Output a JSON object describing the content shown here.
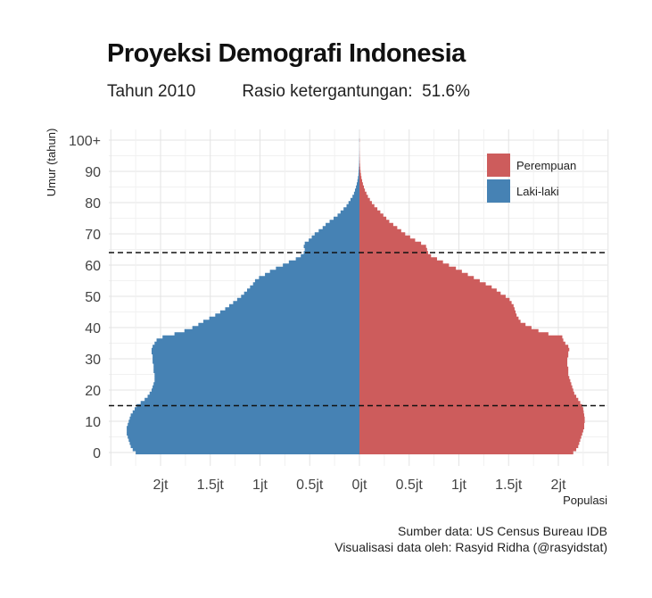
{
  "chart_data": {
    "type": "bar",
    "orientation": "horizontal-pyramid",
    "title": "Proyeksi Demografi Indonesia",
    "subtitle_year": "Tahun 2010",
    "subtitle_ratio_label": "Rasio ketergantungan:",
    "subtitle_ratio_value": "51.6%",
    "ylabel": "Umur (tahun)",
    "xlabel": "Populasi",
    "x_ticks": [
      -2000000,
      -1500000,
      -1000000,
      -500000,
      0,
      500000,
      1000000,
      1500000,
      2000000
    ],
    "x_tick_labels": [
      "2jt",
      "1.5jt",
      "1jt",
      "0.5jt",
      "0jt",
      "0.5jt",
      "1jt",
      "1.5jt",
      "2jt"
    ],
    "xlim": [
      -2500000,
      2500000
    ],
    "y_ticks": [
      0,
      10,
      20,
      30,
      40,
      50,
      60,
      70,
      80,
      90,
      100
    ],
    "y_tick_labels": [
      "0",
      "10",
      "20",
      "30",
      "40",
      "50",
      "60",
      "70",
      "80",
      "90",
      "100+"
    ],
    "ylim": [
      -4,
      106
    ],
    "ages": [
      0,
      1,
      2,
      3,
      4,
      5,
      6,
      7,
      8,
      9,
      10,
      11,
      12,
      13,
      14,
      15,
      16,
      17,
      18,
      19,
      20,
      21,
      22,
      23,
      24,
      25,
      26,
      27,
      28,
      29,
      30,
      31,
      32,
      33,
      34,
      35,
      36,
      37,
      38,
      39,
      40,
      41,
      42,
      43,
      44,
      45,
      46,
      47,
      48,
      49,
      50,
      51,
      52,
      53,
      54,
      55,
      56,
      57,
      58,
      59,
      60,
      61,
      62,
      63,
      64,
      65,
      66,
      67,
      68,
      69,
      70,
      71,
      72,
      73,
      74,
      75,
      76,
      77,
      78,
      79,
      80,
      81,
      82,
      83,
      84,
      85,
      86,
      87,
      88,
      89,
      90,
      91,
      92,
      93,
      94,
      95,
      96,
      97,
      98,
      99,
      100
    ],
    "series": [
      {
        "name": "Perempuan",
        "color": "#cd5c5c",
        "values": [
          2150000,
          2180000,
          2200000,
          2210000,
          2220000,
          2230000,
          2240000,
          2250000,
          2260000,
          2260000,
          2265000,
          2265000,
          2260000,
          2255000,
          2250000,
          2240000,
          2220000,
          2200000,
          2180000,
          2160000,
          2150000,
          2140000,
          2130000,
          2120000,
          2110000,
          2100000,
          2100000,
          2100000,
          2090000,
          2090000,
          2090000,
          2100000,
          2100000,
          2110000,
          2100000,
          2070000,
          2050000,
          2040000,
          1900000,
          1800000,
          1730000,
          1670000,
          1620000,
          1600000,
          1580000,
          1570000,
          1560000,
          1550000,
          1530000,
          1510000,
          1470000,
          1420000,
          1380000,
          1330000,
          1270000,
          1210000,
          1150000,
          1090000,
          1030000,
          970000,
          900000,
          840000,
          780000,
          720000,
          690000,
          680000,
          670000,
          620000,
          560000,
          510000,
          460000,
          420000,
          380000,
          340000,
          300000,
          270000,
          240000,
          210000,
          180000,
          150000,
          125000,
          105000,
          85000,
          70000,
          55000,
          45000,
          35000,
          27000,
          20000,
          15000,
          11000,
          8000,
          6000,
          4000,
          3000,
          2000,
          1500,
          1000,
          700,
          500,
          2000
        ]
      },
      {
        "name": "Laki-laki",
        "color": "#4682b4",
        "values": [
          2250000,
          2280000,
          2300000,
          2310000,
          2320000,
          2330000,
          2340000,
          2340000,
          2340000,
          2330000,
          2320000,
          2310000,
          2300000,
          2280000,
          2260000,
          2240000,
          2200000,
          2160000,
          2130000,
          2110000,
          2090000,
          2080000,
          2070000,
          2060000,
          2060000,
          2060000,
          2070000,
          2070000,
          2070000,
          2080000,
          2080000,
          2080000,
          2090000,
          2090000,
          2080000,
          2060000,
          2040000,
          1980000,
          1860000,
          1760000,
          1680000,
          1620000,
          1570000,
          1510000,
          1450000,
          1400000,
          1350000,
          1310000,
          1270000,
          1230000,
          1190000,
          1160000,
          1130000,
          1100000,
          1070000,
          1050000,
          1010000,
          950000,
          900000,
          840000,
          770000,
          710000,
          640000,
          590000,
          560000,
          550000,
          560000,
          550000,
          510000,
          480000,
          450000,
          410000,
          370000,
          340000,
          300000,
          260000,
          220000,
          190000,
          160000,
          130000,
          110000,
          90000,
          70000,
          55000,
          45000,
          35000,
          27000,
          20000,
          15000,
          10000,
          8000,
          6000,
          4000,
          3000,
          2000,
          1500,
          1000,
          700,
          500,
          400,
          1500
        ]
      }
    ],
    "reference_lines": [
      15,
      64
    ],
    "legend": "top-right",
    "grid": true
  },
  "caption_line1": "Sumber data: US Census Bureau IDB",
  "caption_line2": "Visualisasi data oleh: Rasyid Ridha (@rasyidstat)"
}
